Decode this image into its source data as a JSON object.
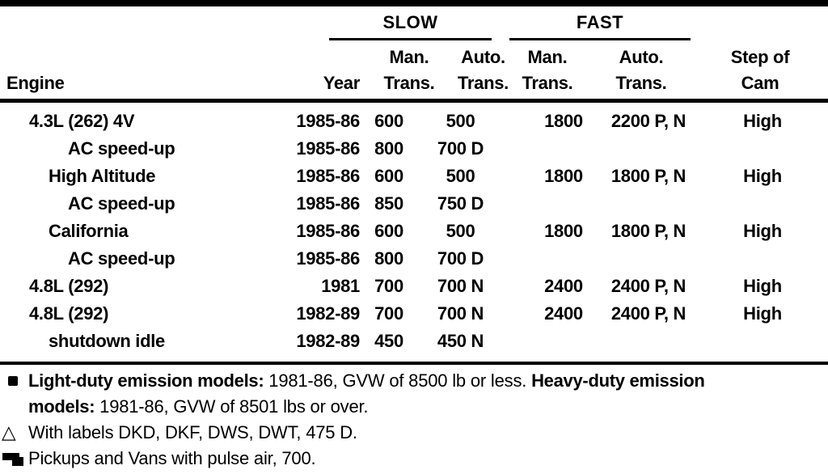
{
  "colors": {
    "ink": "#000000",
    "paper": "#ffffff"
  },
  "table": {
    "group_headers": {
      "slow": "SLOW",
      "fast": "FAST"
    },
    "column_headers": {
      "engine": "Engine",
      "year": "Year",
      "slow_man": [
        "Man.",
        "Trans."
      ],
      "slow_auto": [
        "Auto.",
        "Trans."
      ],
      "fast_man": [
        "Man.",
        "Trans."
      ],
      "fast_auto": [
        "Auto.",
        "Trans."
      ],
      "cam": [
        "Step of",
        "Cam"
      ]
    },
    "rows": [
      {
        "engine": "4.3L (262) 4V",
        "indent": 0,
        "year": "1985-86",
        "slow_man": "600",
        "slow_auto": "500",
        "fast_man": "1800",
        "fast_auto": "2200 P, N",
        "cam": "High"
      },
      {
        "engine": "AC speed-up",
        "indent": 2,
        "year": "1985-86",
        "slow_man": "800",
        "slow_auto": "700 D",
        "fast_man": "",
        "fast_auto": "",
        "cam": ""
      },
      {
        "engine": "High Altitude",
        "indent": 1,
        "year": "1985-86",
        "slow_man": "600",
        "slow_auto": "500",
        "fast_man": "1800",
        "fast_auto": "1800 P, N",
        "cam": "High"
      },
      {
        "engine": "AC speed-up",
        "indent": 2,
        "year": "1985-86",
        "slow_man": "850",
        "slow_auto": "750 D",
        "fast_man": "",
        "fast_auto": "",
        "cam": ""
      },
      {
        "engine": "California",
        "indent": 1,
        "year": "1985-86",
        "slow_man": "600",
        "slow_auto": "500",
        "fast_man": "1800",
        "fast_auto": "1800 P, N",
        "cam": "High"
      },
      {
        "engine": "AC speed-up",
        "indent": 2,
        "year": "1985-86",
        "slow_man": "800",
        "slow_auto": "700 D",
        "fast_man": "",
        "fast_auto": "",
        "cam": ""
      },
      {
        "engine": "4.8L (292)",
        "indent": 0,
        "year": "1981",
        "slow_man": "700",
        "slow_auto": "700 N",
        "fast_man": "2400",
        "fast_auto": "2400 P, N",
        "cam": "High"
      },
      {
        "engine": "4.8L (292)",
        "indent": 0,
        "year": "1982-89",
        "slow_man": "700",
        "slow_auto": "700 N",
        "fast_man": "2400",
        "fast_auto": "2400 P, N",
        "cam": "High"
      },
      {
        "engine": "shutdown idle",
        "indent": 1,
        "year": "1982-89",
        "slow_man": "450",
        "slow_auto": "450 N",
        "fast_man": "",
        "fast_auto": "",
        "cam": ""
      }
    ]
  },
  "footnotes": [
    {
      "marker": "square-bullet",
      "segments": [
        {
          "text": "Light-duty emission models:",
          "bold": true
        },
        {
          "text": " 1981-86, GVW of 8500 lb or less. ",
          "bold": false
        },
        {
          "text": "Heavy-duty emission",
          "bold": true
        },
        {
          "break": true
        },
        {
          "text": "models:",
          "bold": true
        },
        {
          "text": " 1981-86, GVW of 8501 lbs or over.",
          "bold": false
        }
      ]
    },
    {
      "marker": "triangle",
      "segments": [
        {
          "text": "With labels DKD, DKF, DWS, DWT, 475 D.",
          "bold": false
        }
      ]
    },
    {
      "marker": "double-square",
      "segments": [
        {
          "text": "Pickups and Vans with pulse air, 700.",
          "bold": false
        }
      ]
    }
  ]
}
